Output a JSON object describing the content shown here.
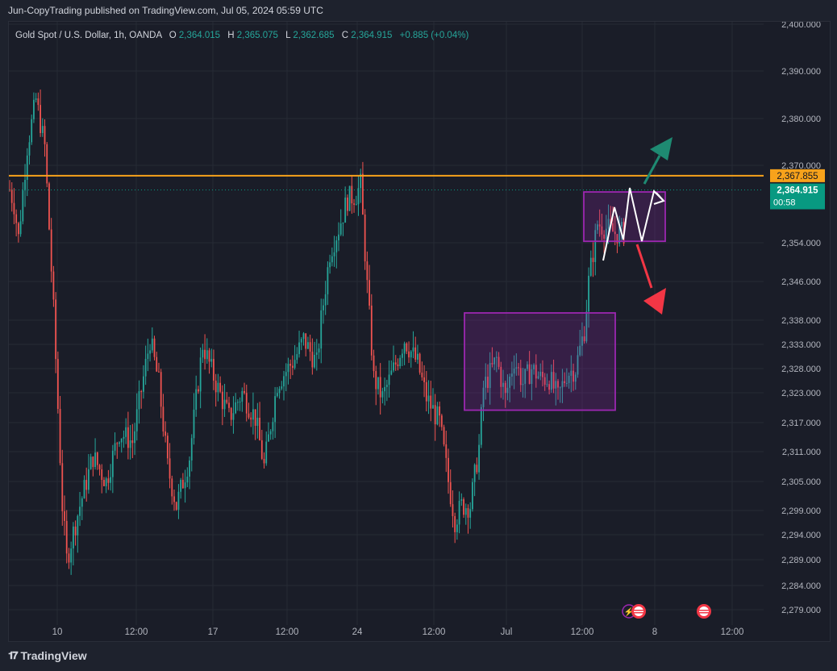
{
  "header": {
    "published": "Jun-CopyTrading published on TradingView.com, Jul 05, 2024 05:59 UTC"
  },
  "legend": {
    "symbol": "Gold Spot / U.S. Dollar, 1h, OANDA",
    "o_label": "O",
    "o": "2,364.015",
    "h_label": "H",
    "h": "2,365.075",
    "l_label": "L",
    "l": "2,362.685",
    "c_label": "C",
    "c": "2,364.915",
    "change": "+0.885 (+0.04%)"
  },
  "footer": {
    "brand": "TradingView",
    "logo": "tradingview-logo"
  },
  "colors": {
    "up": "#26a69a",
    "down": "#ef5350",
    "resistance": "#f7a21b",
    "box": "#9c27b0",
    "last_price": "#089981",
    "arrow_up": "#1e8a72",
    "arrow_down": "#f23645"
  },
  "chart_data": {
    "type": "candlestick",
    "title": "Gold Spot / U.S. Dollar, 1h, OANDA",
    "timeframe": "1h",
    "yaxis_ticks": [
      "2,400.000",
      "2,390.000",
      "2,380.000",
      "2,370.000",
      "2,354.000",
      "2,346.000",
      "2,338.000",
      "2,333.000",
      "2,328.000",
      "2,323.000",
      "2,317.000",
      "2,311.000",
      "2,305.000",
      "2,299.000",
      "2,294.000",
      "2,289.000",
      "2,284.000",
      "2,279.000"
    ],
    "xaxis_ticks": [
      "10",
      "12:00",
      "17",
      "12:00",
      "24",
      "12:00",
      "Jul",
      "12:00",
      "8",
      "12:00"
    ],
    "resistance": {
      "value": 2367.855,
      "label": "2,367.855"
    },
    "last_price": {
      "value": 2364.915,
      "label": "2,364.915",
      "countdown": "00:58"
    },
    "zones": [
      {
        "name": "consolidation",
        "y_low": 2319.5,
        "y_high": 2339.5
      },
      {
        "name": "current-range",
        "y_low": 2354.3,
        "y_high": 2364.5
      }
    ],
    "projections": [
      "breakout-up",
      "breakdown-down"
    ],
    "series": [
      {
        "path": [
          [
            0,
            2365
          ],
          [
            2,
            2362
          ],
          [
            4,
            2355
          ],
          [
            8,
            2374
          ],
          [
            12,
            2384
          ],
          [
            16,
            2374
          ],
          [
            20,
            2340
          ],
          [
            24,
            2300
          ],
          [
            26,
            2289
          ],
          [
            32,
            2300
          ],
          [
            38,
            2310
          ],
          [
            44,
            2305
          ],
          [
            50,
            2315
          ],
          [
            56,
            2313
          ],
          [
            64,
            2334
          ],
          [
            68,
            2325
          ],
          [
            72,
            2308
          ],
          [
            76,
            2300
          ],
          [
            82,
            2310
          ],
          [
            88,
            2333
          ],
          [
            94,
            2325
          ],
          [
            100,
            2318
          ],
          [
            106,
            2323
          ],
          [
            112,
            2318
          ],
          [
            116,
            2308
          ],
          [
            122,
            2325
          ],
          [
            130,
            2330
          ],
          [
            134,
            2334
          ],
          [
            140,
            2329
          ],
          [
            142,
            2338
          ],
          [
            146,
            2352
          ],
          [
            150,
            2357
          ],
          [
            154,
            2363
          ],
          [
            158,
            2364
          ],
          [
            160,
            2366
          ],
          [
            163,
            2345
          ],
          [
            166,
            2326
          ],
          [
            170,
            2322
          ],
          [
            176,
            2329
          ],
          [
            180,
            2334
          ],
          [
            186,
            2329
          ],
          [
            190,
            2322
          ],
          [
            196,
            2317
          ],
          [
            200,
            2305
          ],
          [
            203,
            2297
          ],
          [
            206,
            2300
          ],
          [
            210,
            2300
          ],
          [
            214,
            2312
          ],
          [
            216,
            2324
          ],
          [
            222,
            2330
          ],
          [
            226,
            2322
          ],
          [
            230,
            2330
          ],
          [
            234,
            2325
          ],
          [
            238,
            2328
          ],
          [
            242,
            2326
          ],
          [
            246,
            2326
          ],
          [
            250,
            2322
          ],
          [
            254,
            2327
          ],
          [
            258,
            2328
          ],
          [
            262,
            2336
          ],
          [
            264,
            2346
          ],
          [
            266,
            2352
          ],
          [
            268,
            2358
          ],
          [
            272,
            2357
          ],
          [
            276,
            2356
          ],
          [
            280,
            2356
          ]
        ]
      }
    ]
  }
}
